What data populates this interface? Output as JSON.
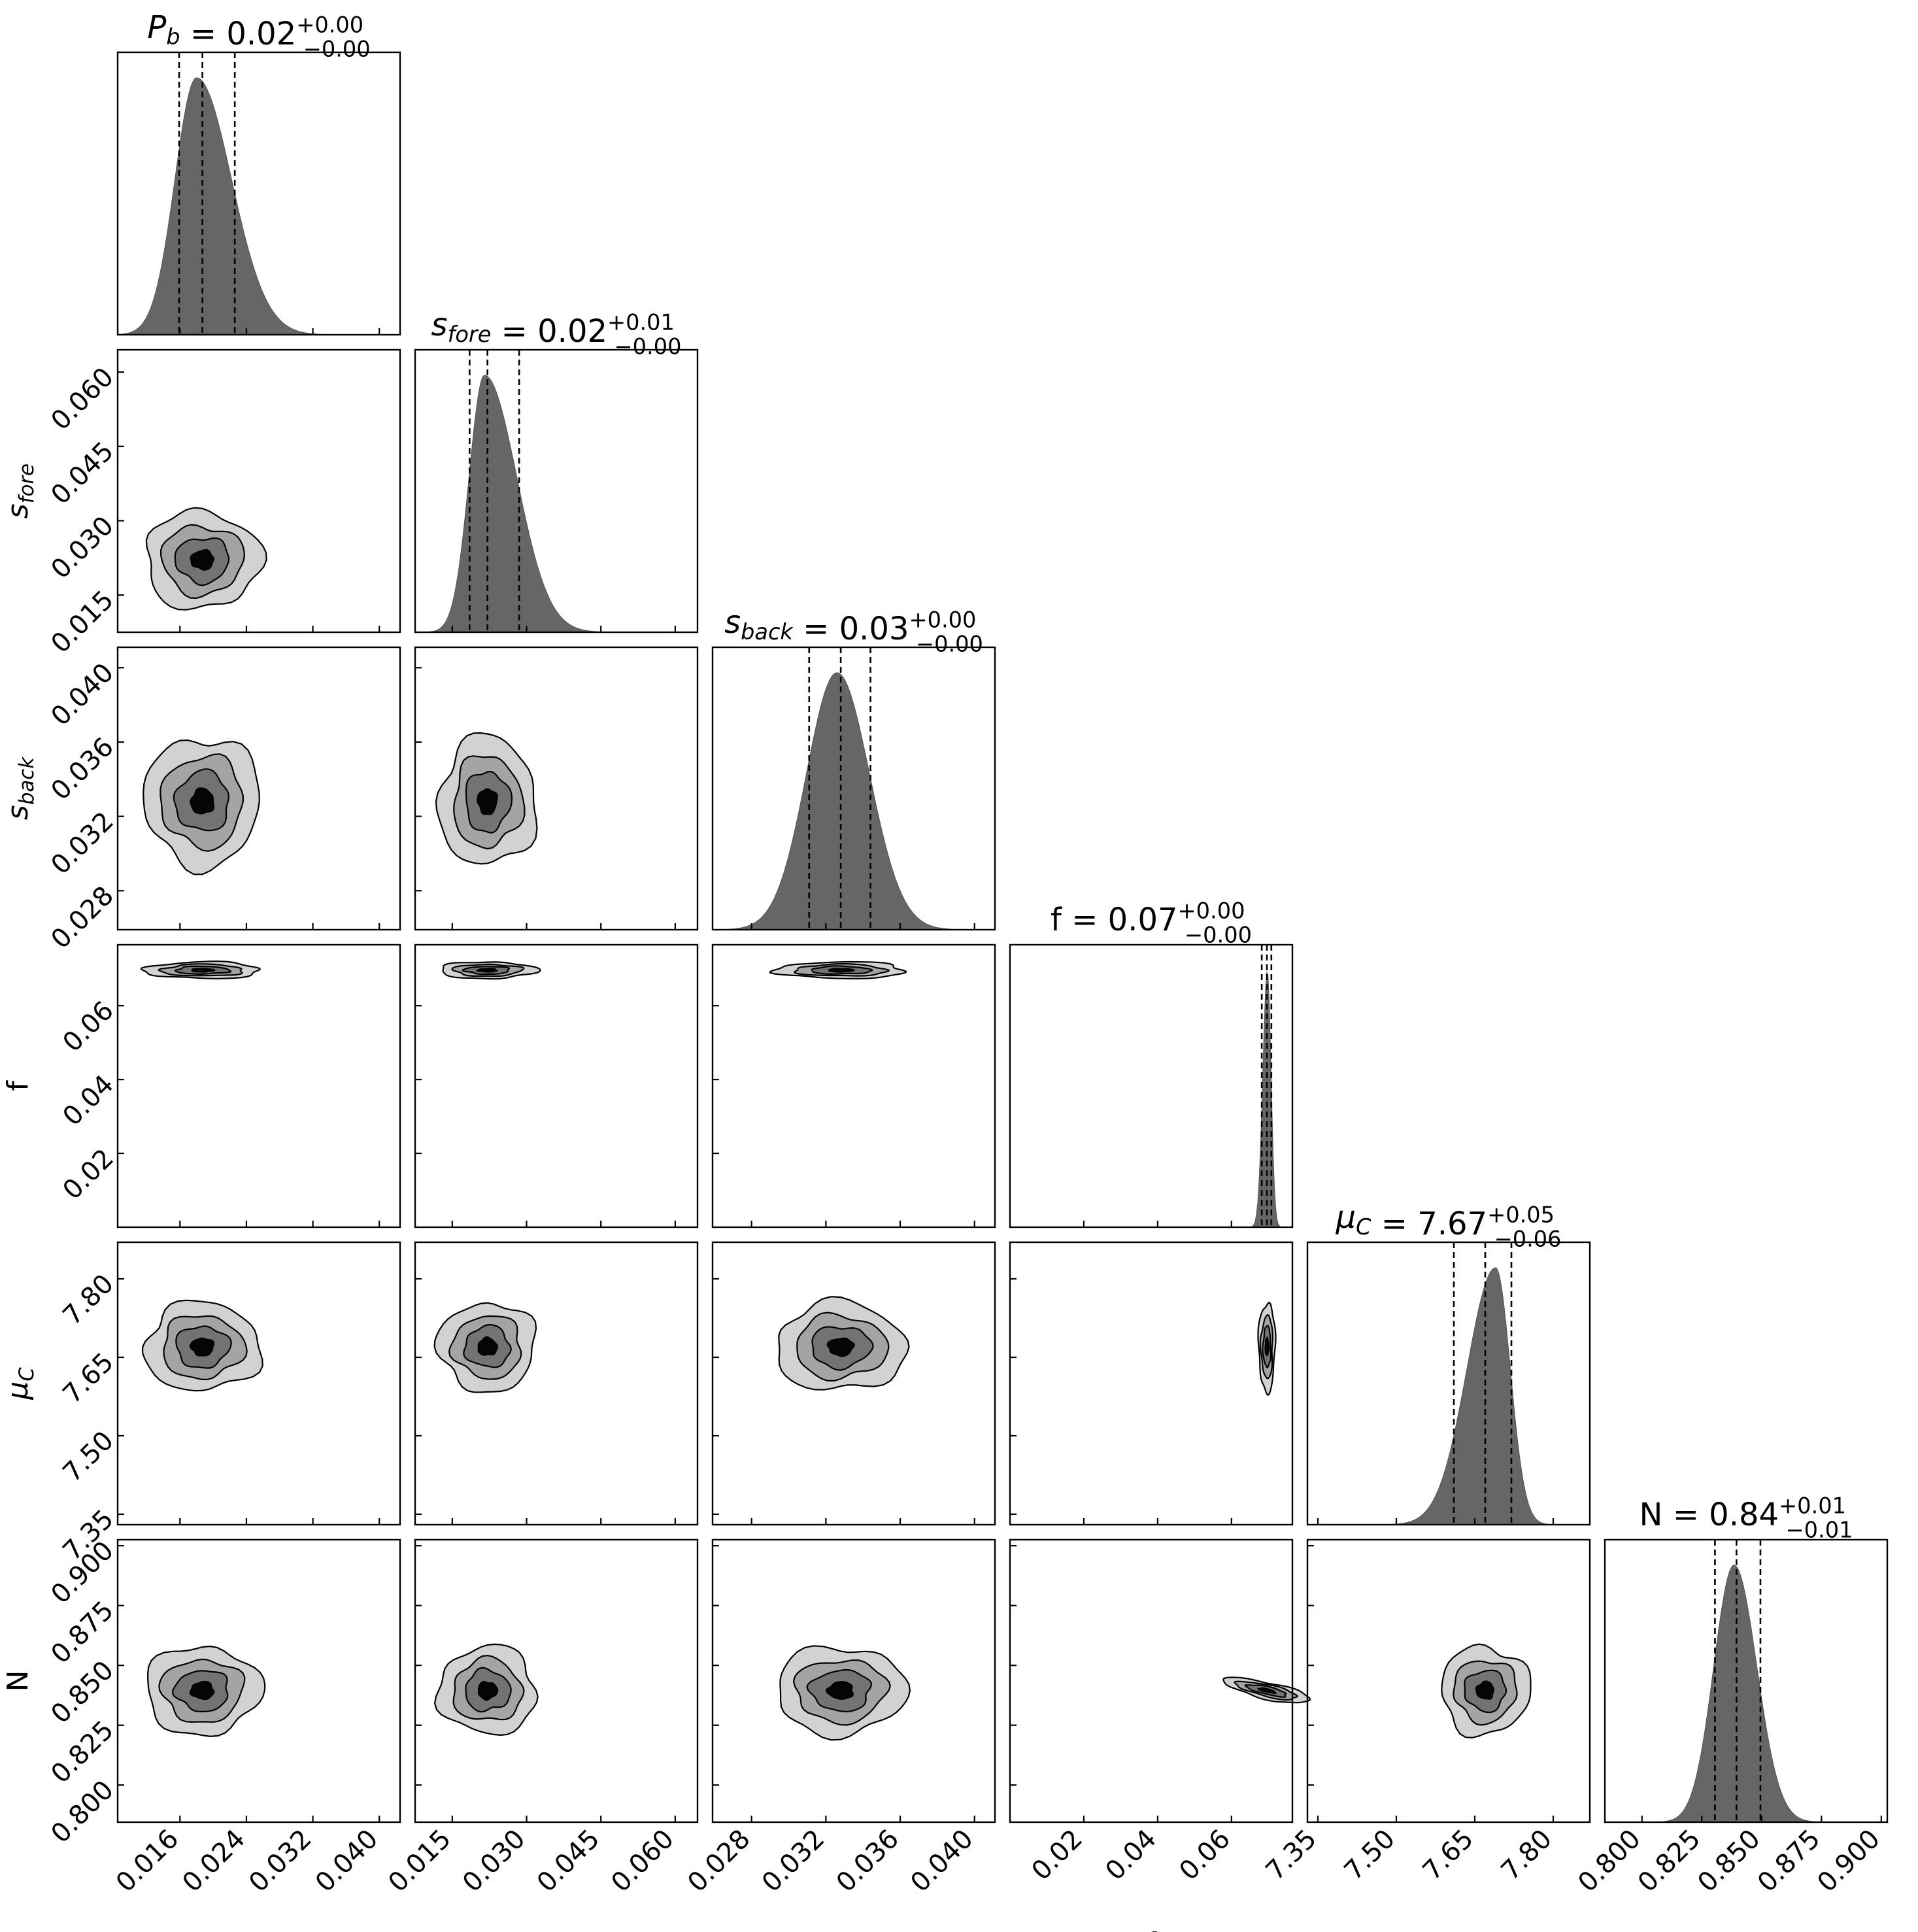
{
  "chart_data": {
    "type": "corner",
    "parameters": [
      {
        "key": "Pb",
        "symbol": "P",
        "sub": "b",
        "italic": true,
        "xlim": [
          0.0085,
          0.0425
        ],
        "ticks": [
          0.016,
          0.024,
          0.032,
          0.04
        ],
        "tick_labels": [
          "0.016",
          "0.024",
          "0.032",
          "0.040"
        ],
        "median": 0.0187,
        "lower": 0.0159,
        "upper": 0.0226,
        "peak": 0.018,
        "sigma_left": 0.0026,
        "sigma_right": 0.0042,
        "title_value": "0.02",
        "err_plus": "+0.00",
        "err_minus": "−0.00"
      },
      {
        "key": "sfore",
        "symbol": "s",
        "sub": "fore",
        "italic": true,
        "xlim": [
          0.0075,
          0.0645
        ],
        "ticks": [
          0.015,
          0.03,
          0.045,
          0.06
        ],
        "tick_labels": [
          "0.015",
          "0.030",
          "0.045",
          "0.060"
        ],
        "median": 0.0221,
        "lower": 0.0185,
        "upper": 0.0285,
        "peak": 0.0215,
        "sigma_left": 0.0031,
        "sigma_right": 0.0065,
        "title_value": "0.02",
        "err_plus": "+0.01",
        "err_minus": "−0.00"
      },
      {
        "key": "sback",
        "symbol": "s",
        "sub": "back",
        "italic": true,
        "xlim": [
          0.0259,
          0.0411
        ],
        "ticks": [
          0.028,
          0.032,
          0.036,
          0.04
        ],
        "tick_labels": [
          "0.028",
          "0.032",
          "0.036",
          "0.040"
        ],
        "median": 0.0328,
        "lower": 0.0311,
        "upper": 0.0344,
        "peak": 0.0326,
        "sigma_left": 0.00165,
        "sigma_right": 0.00175,
        "title_value": "0.03",
        "err_plus": "+0.00",
        "err_minus": "−0.00"
      },
      {
        "key": "f",
        "symbol": "f",
        "sub": "",
        "italic": false,
        "xlim": [
          0.0,
          0.0765
        ],
        "ticks": [
          0.02,
          0.04,
          0.06
        ],
        "tick_labels": [
          "0.02",
          "0.04",
          "0.06"
        ],
        "median": 0.0696,
        "lower": 0.0682,
        "upper": 0.0708,
        "peak": 0.0697,
        "sigma_left": 0.0012,
        "sigma_right": 0.001,
        "title_value": "0.07",
        "err_plus": "+0.00",
        "err_minus": "−0.00"
      },
      {
        "key": "muC",
        "symbol": "μ",
        "sub": "C",
        "italic": true,
        "xlim": [
          7.33,
          7.87
        ],
        "ticks": [
          7.35,
          7.5,
          7.65,
          7.8
        ],
        "tick_labels": [
          "7.35",
          "7.50",
          "7.65",
          "7.80"
        ],
        "median": 7.67,
        "lower": 7.61,
        "upper": 7.72,
        "peak": 7.69,
        "sigma_left": 0.055,
        "sigma_right": 0.028,
        "title_value": "7.67",
        "err_plus": "+0.05",
        "err_minus": "−0.06"
      },
      {
        "key": "N",
        "symbol": "N",
        "sub": "",
        "italic": false,
        "xlim": [
          0.7845,
          0.9025
        ],
        "ticks": [
          0.8,
          0.825,
          0.85,
          0.875,
          0.9
        ],
        "tick_labels": [
          "0.800",
          "0.825",
          "0.850",
          "0.875",
          "0.900"
        ],
        "median": 0.8395,
        "lower": 0.8305,
        "upper": 0.8495,
        "peak": 0.8385,
        "sigma_left": 0.0085,
        "sigma_right": 0.0095,
        "title_value": "0.84",
        "err_plus": "+0.01",
        "err_minus": "−0.01"
      }
    ],
    "histogram_style": "filled",
    "contour_levels": 4,
    "grid": false,
    "legend": "none"
  }
}
